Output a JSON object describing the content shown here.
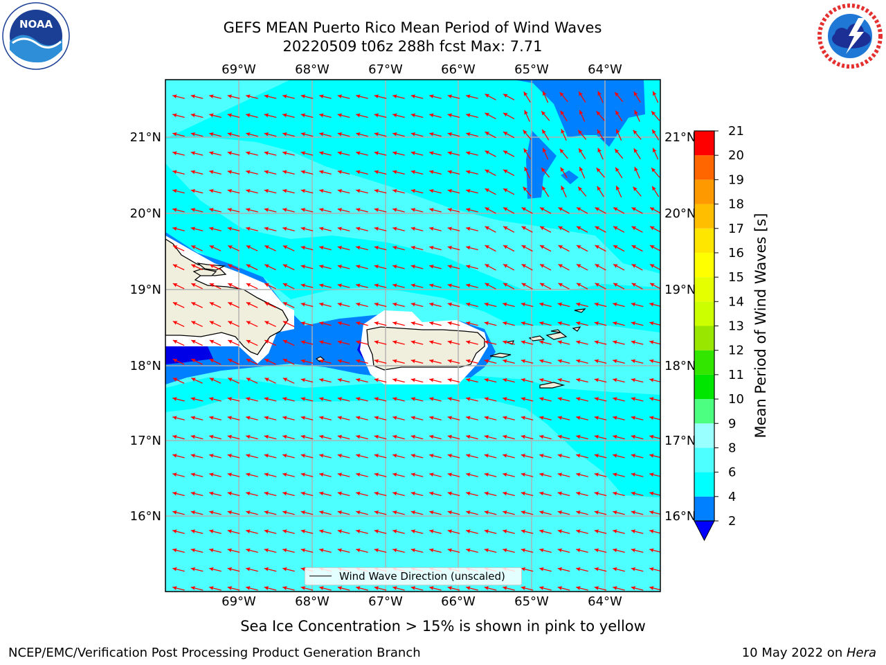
{
  "title": {
    "line1": "GEFS MEAN Puerto Rico Mean Period of Wind Waves",
    "line2": "20220509 t06z 288h fcst   Max: 7.71"
  },
  "logos": {
    "left": {
      "icon": "noaa-logo",
      "text": "NOAA",
      "ring_text": "NATIONAL OCEANIC AND ATMOSPHERIC ADMINISTRATION · U.S. DEPARTMENT OF COMMERCE"
    },
    "right": {
      "icon": "nws-logo",
      "ring_text": "NATIONAL WEATHER SERVICE"
    }
  },
  "map": {
    "lon_labels": [
      "69°W",
      "68°W",
      "67°W",
      "66°W",
      "65°W",
      "64°W"
    ],
    "lat_labels": [
      "21°N",
      "20°N",
      "19°N",
      "18°N",
      "17°N",
      "16°N"
    ],
    "colors": {
      "ocean_main": "#4dffff",
      "ocean_band": "#00ffff",
      "ocean_low": "#0080ff",
      "ocean_lowest": "#0000e6",
      "land": "#f0eedd",
      "no_data": "#ffffff",
      "arrow": "#ff0000",
      "grid": "#b0b0b0"
    },
    "arrow_icon": "wind-direction-arrow"
  },
  "colorbar": {
    "label": "Mean Period of Wind Waves [s]",
    "ticks": [
      "2",
      "4",
      "6",
      "8",
      "9",
      "10",
      "11",
      "12",
      "13",
      "14",
      "15",
      "16",
      "17",
      "18",
      "19",
      "20",
      "21"
    ],
    "colors": [
      "#0080ff",
      "#00ffff",
      "#4dffff",
      "#99ffff",
      "#4dff80",
      "#00e600",
      "#33e600",
      "#99e600",
      "#ccff00",
      "#e6ff00",
      "#ffff00",
      "#ffe600",
      "#ffbf00",
      "#ff9900",
      "#ff6600",
      "#ff3300",
      "#ff0000"
    ],
    "under_color": "#0000ff"
  },
  "legend": {
    "label": "Wind Wave Direction (unscaled)"
  },
  "note": "Sea Ice Concentration > 15% is shown in pink to yellow",
  "footer": {
    "left": "NCEP/EMC/Verification Post Processing Product Generation Branch",
    "date": "10 May 2022 on ",
    "machine": "Hera"
  }
}
